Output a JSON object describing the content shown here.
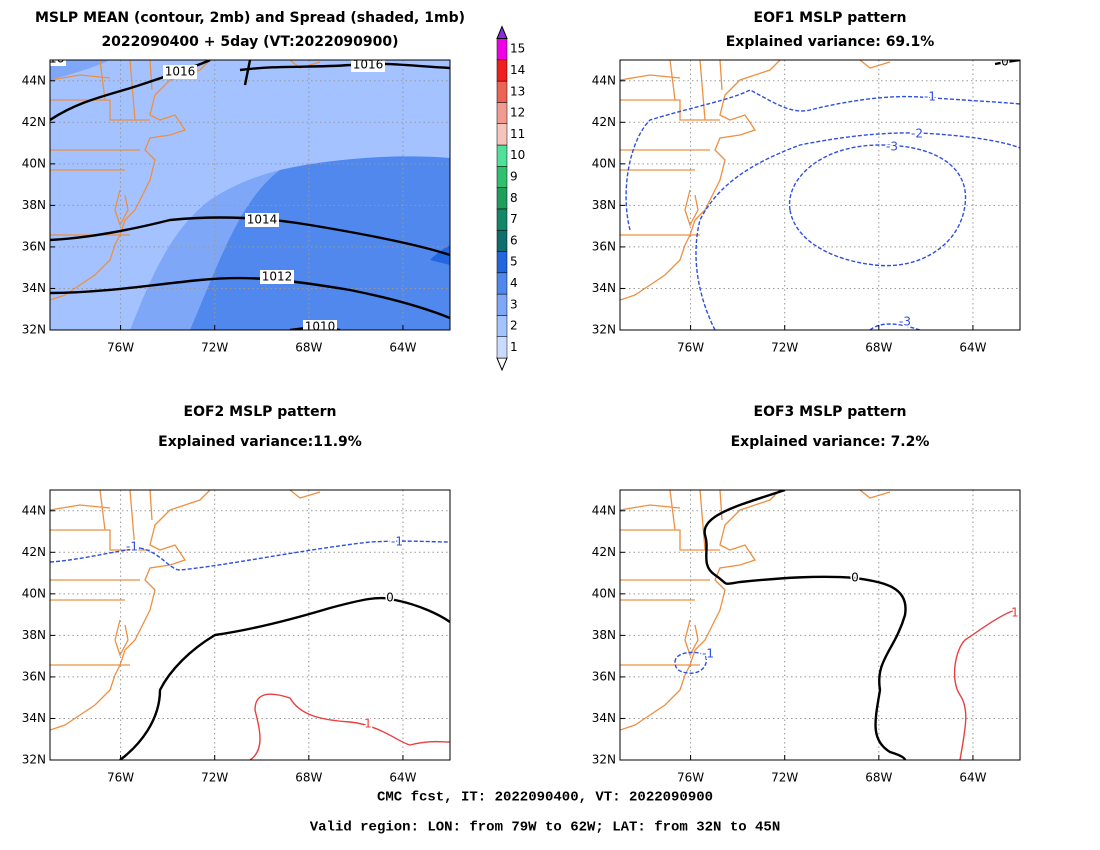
{
  "chart_data": [
    {
      "type": "contour",
      "title": "MSLP MEAN (contour, 2mb) and Spread (shaded, 1mb)",
      "subtitle": "2022090400 + 5day (VT:2022090900)",
      "xlim": [
        -79,
        -62
      ],
      "ylim": [
        32,
        45
      ],
      "xticks": [
        {
          "value": -76,
          "label": "76W"
        },
        {
          "value": -72,
          "label": "72W"
        },
        {
          "value": -68,
          "label": "68W"
        },
        {
          "value": -64,
          "label": "64W"
        }
      ],
      "yticks": [
        {
          "value": 32,
          "label": "32N"
        },
        {
          "value": 34,
          "label": "34N"
        },
        {
          "value": 36,
          "label": "36N"
        },
        {
          "value": 38,
          "label": "38N"
        },
        {
          "value": 40,
          "label": "40N"
        },
        {
          "value": 42,
          "label": "42N"
        },
        {
          "value": 44,
          "label": "44N"
        }
      ],
      "grid": true,
      "contours": [
        {
          "level": 1016,
          "color": "#000000",
          "style": "solid"
        },
        {
          "level": 1016,
          "color": "#000000",
          "style": "solid"
        },
        {
          "level": 1016,
          "color": "#000000",
          "style": "solid"
        },
        {
          "level": 1014,
          "color": "#000000",
          "style": "solid"
        },
        {
          "level": 1012,
          "color": "#000000",
          "style": "solid"
        },
        {
          "level": 1010,
          "color": "#000000",
          "style": "solid"
        }
      ],
      "colorbar": {
        "ticks": [
          1,
          2,
          3,
          4,
          5,
          6,
          7,
          8,
          9,
          10,
          11,
          12,
          13,
          14,
          15
        ],
        "colors": [
          "#c9dcff",
          "#a4c2ff",
          "#7ea8f7",
          "#5088ee",
          "#2266e0",
          "#0f6e6e",
          "#13876a",
          "#1ea05c",
          "#2fc070",
          "#4fe09a",
          "#f7c4bc",
          "#f29a90",
          "#ee6454",
          "#f01e1e",
          "#f000e8"
        ]
      }
    },
    {
      "type": "contour",
      "title": "EOF1 MSLP pattern",
      "subtitle": "Explained variance: 69.1%",
      "xlim": [
        -79,
        -62
      ],
      "ylim": [
        32,
        45
      ],
      "xticks": [
        {
          "value": -76,
          "label": "76W"
        },
        {
          "value": -72,
          "label": "72W"
        },
        {
          "value": -68,
          "label": "68W"
        },
        {
          "value": -64,
          "label": "64W"
        }
      ],
      "yticks": [
        {
          "value": 32,
          "label": "32N"
        },
        {
          "value": 34,
          "label": "34N"
        },
        {
          "value": 36,
          "label": "36N"
        },
        {
          "value": 38,
          "label": "38N"
        },
        {
          "value": 40,
          "label": "40N"
        },
        {
          "value": 42,
          "label": "42N"
        },
        {
          "value": 44,
          "label": "44N"
        }
      ],
      "grid": true,
      "contours": [
        {
          "level": -1,
          "color": "#2f4fe0",
          "style": "dashed"
        },
        {
          "level": -2,
          "color": "#2f4fe0",
          "style": "dashed"
        },
        {
          "level": -3,
          "color": "#2f4fe0",
          "style": "dashed"
        },
        {
          "level": -3,
          "color": "#2f4fe0",
          "style": "dashed"
        },
        {
          "level": 0,
          "color": "#000000",
          "style": "solid"
        }
      ]
    },
    {
      "type": "contour",
      "title": "EOF2 MSLP pattern",
      "subtitle": "Explained variance:11.9%",
      "xlim": [
        -79,
        -62
      ],
      "ylim": [
        32,
        45
      ],
      "xticks": [
        {
          "value": -76,
          "label": "76W"
        },
        {
          "value": -72,
          "label": "72W"
        },
        {
          "value": -68,
          "label": "68W"
        },
        {
          "value": -64,
          "label": "64W"
        }
      ],
      "yticks": [
        {
          "value": 32,
          "label": "32N"
        },
        {
          "value": 34,
          "label": "34N"
        },
        {
          "value": 36,
          "label": "36N"
        },
        {
          "value": 38,
          "label": "38N"
        },
        {
          "value": 40,
          "label": "40N"
        },
        {
          "value": 42,
          "label": "42N"
        },
        {
          "value": 44,
          "label": "44N"
        }
      ],
      "grid": true,
      "contours": [
        {
          "level": -1,
          "color": "#2f4fe0",
          "style": "dashed"
        },
        {
          "level": -1,
          "color": "#2f4fe0",
          "style": "dashed"
        },
        {
          "level": 0,
          "color": "#000000",
          "style": "solid"
        },
        {
          "level": 1,
          "color": "#e84040",
          "style": "solid"
        }
      ]
    },
    {
      "type": "contour",
      "title": "EOF3 MSLP pattern",
      "subtitle": "Explained variance: 7.2%",
      "xlim": [
        -79,
        -62
      ],
      "ylim": [
        32,
        45
      ],
      "xticks": [
        {
          "value": -76,
          "label": "76W"
        },
        {
          "value": -72,
          "label": "72W"
        },
        {
          "value": -68,
          "label": "68W"
        },
        {
          "value": -64,
          "label": "64W"
        }
      ],
      "yticks": [
        {
          "value": 32,
          "label": "32N"
        },
        {
          "value": 34,
          "label": "34N"
        },
        {
          "value": 36,
          "label": "36N"
        },
        {
          "value": 38,
          "label": "38N"
        },
        {
          "value": 40,
          "label": "40N"
        },
        {
          "value": 42,
          "label": "42N"
        },
        {
          "value": 44,
          "label": "44N"
        }
      ],
      "grid": true,
      "contours": [
        {
          "level": 0,
          "color": "#000000",
          "style": "solid"
        },
        {
          "level": -1,
          "color": "#2f4fe0",
          "style": "dashed"
        },
        {
          "level": 1,
          "color": "#e84040",
          "style": "solid"
        }
      ]
    }
  ],
  "footer": [
    "CMC fcst, IT: 2022090400, VT: 2022090900",
    "Valid region: LON: from 79W to 62W; LAT: from 32N to 45N"
  ]
}
